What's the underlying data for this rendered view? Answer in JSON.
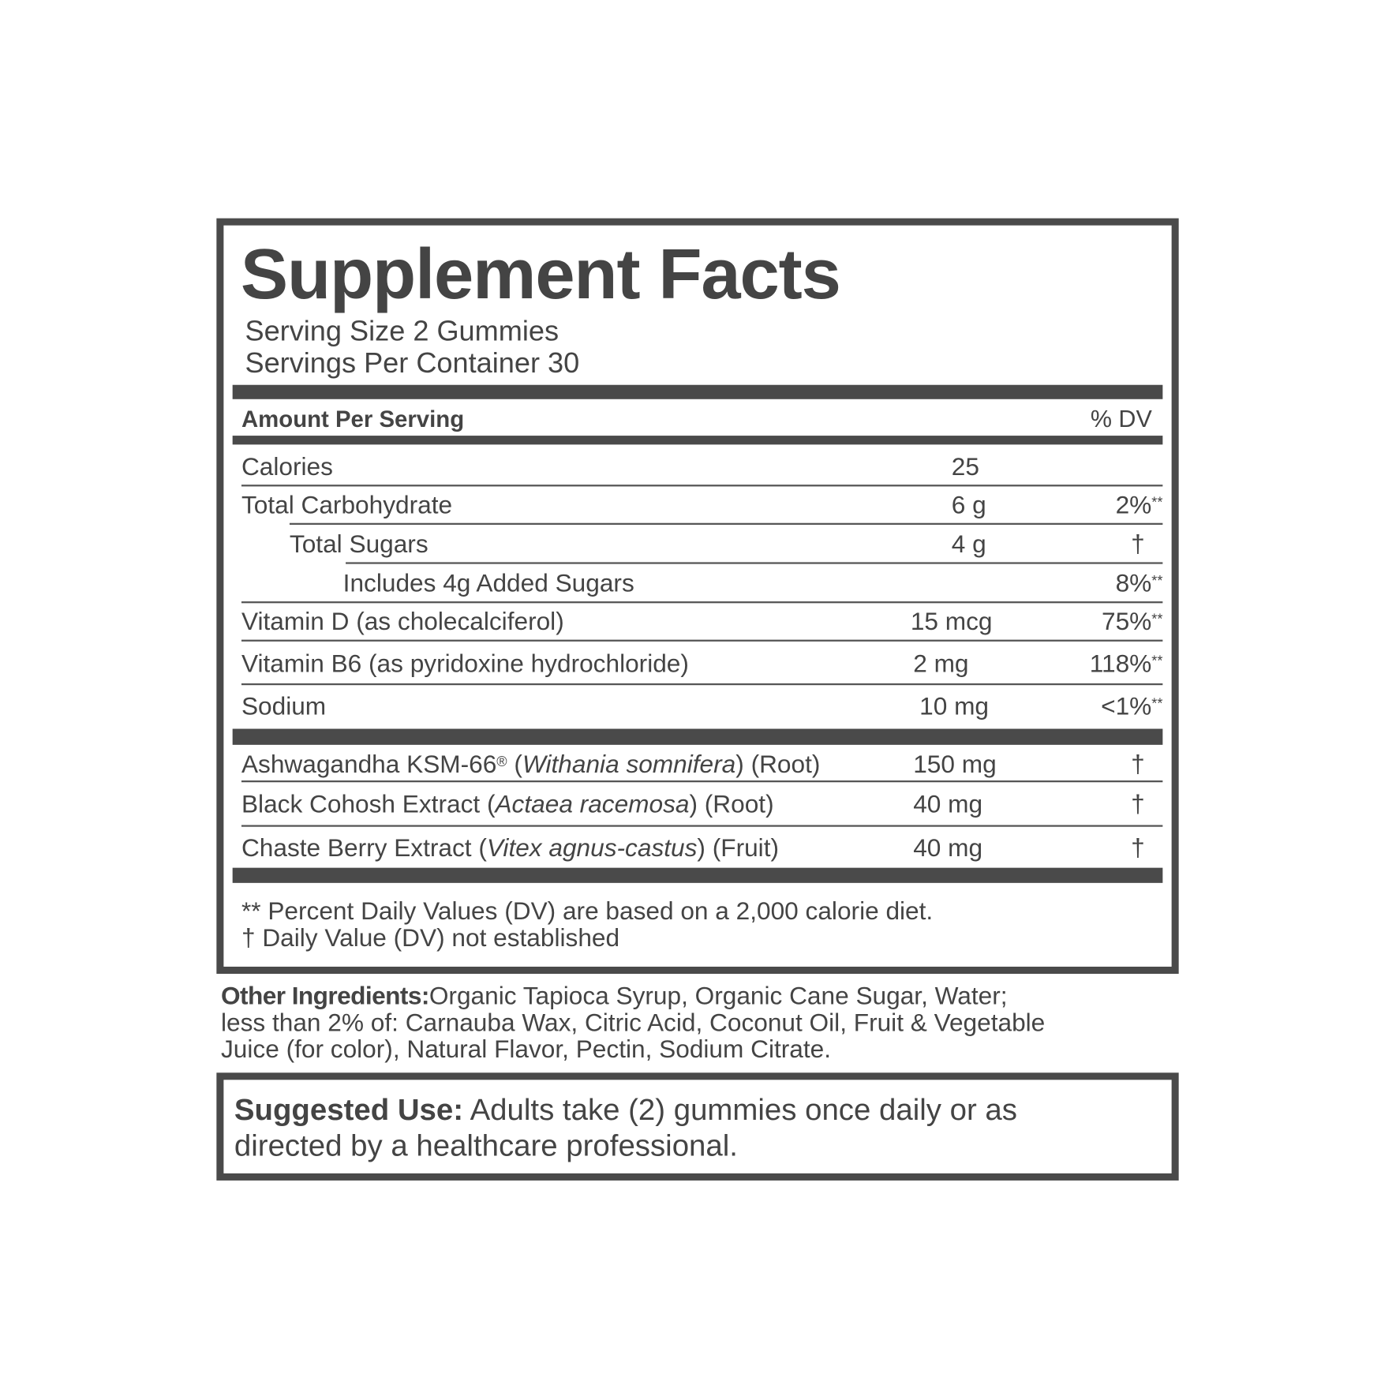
{
  "title": "Supplement Facts",
  "serving_size": "Serving Size 2 Gummies",
  "servings_per_container": "Servings Per Container 30",
  "header": {
    "amount_per_serving": "Amount Per Serving",
    "dv": "% DV"
  },
  "nutrients": [
    {
      "name": "Calories",
      "amount": "25",
      "dv": "",
      "mark": ""
    },
    {
      "name": "Total Carbohydrate",
      "amount": "6 g",
      "dv": "2%",
      "mark": "**"
    },
    {
      "name": "Total Sugars",
      "amount": "4 g",
      "dv": "†",
      "mark": ""
    },
    {
      "name": "Includes 4g Added Sugars",
      "amount": "",
      "dv": "8%",
      "mark": "**"
    },
    {
      "name": "Vitamin D (as cholecalciferol)",
      "amount": "15 mcg",
      "dv": "75%",
      "mark": "**"
    },
    {
      "name": "Vitamin B6 (as pyridoxine hydrochloride)",
      "amount": "2 mg",
      "dv": "118%",
      "mark": "**"
    },
    {
      "name": "Sodium",
      "amount": "10 mg",
      "dv": "<1%",
      "mark": "**"
    }
  ],
  "botanicals": [
    {
      "name": "Ashwagandha KSM-66",
      "reg": "®",
      "open": " (",
      "latin": "Withania somnifera",
      "close": ") (Root)",
      "amount": "150 mg",
      "dv": "†"
    },
    {
      "name": "Black Cohosh Extract",
      "reg": "",
      "open": " (",
      "latin": "Actaea racemosa",
      "close": ") (Root)",
      "amount": "40 mg",
      "dv": "†"
    },
    {
      "name": "Chaste Berry Extract",
      "reg": "",
      "open": " (",
      "latin": "Vitex agnus-castus",
      "close": ") (Fruit)",
      "amount": "40 mg",
      "dv": "†"
    }
  ],
  "footnotes": [
    "** Percent Daily Values (DV) are based on a 2,000 calorie diet.",
    "† Daily Value (DV) not established"
  ],
  "other_ingredients": {
    "label": "Other Ingredients:",
    "lines": [
      "Organic Tapioca Syrup, Organic Cane Sugar, Water;",
      "less than 2% of: Carnauba Wax, Citric Acid, Coconut Oil, Fruit & Vegetable",
      "Juice (for color), Natural Flavor, Pectin, Sodium Citrate."
    ]
  },
  "suggested_use": {
    "label": "Suggested Use:",
    "line1": " Adults take (2) gummies once daily or as",
    "line2": "directed by a healthcare professional."
  },
  "colors": {
    "ink": "#4a4a4a",
    "text": "#444444"
  }
}
